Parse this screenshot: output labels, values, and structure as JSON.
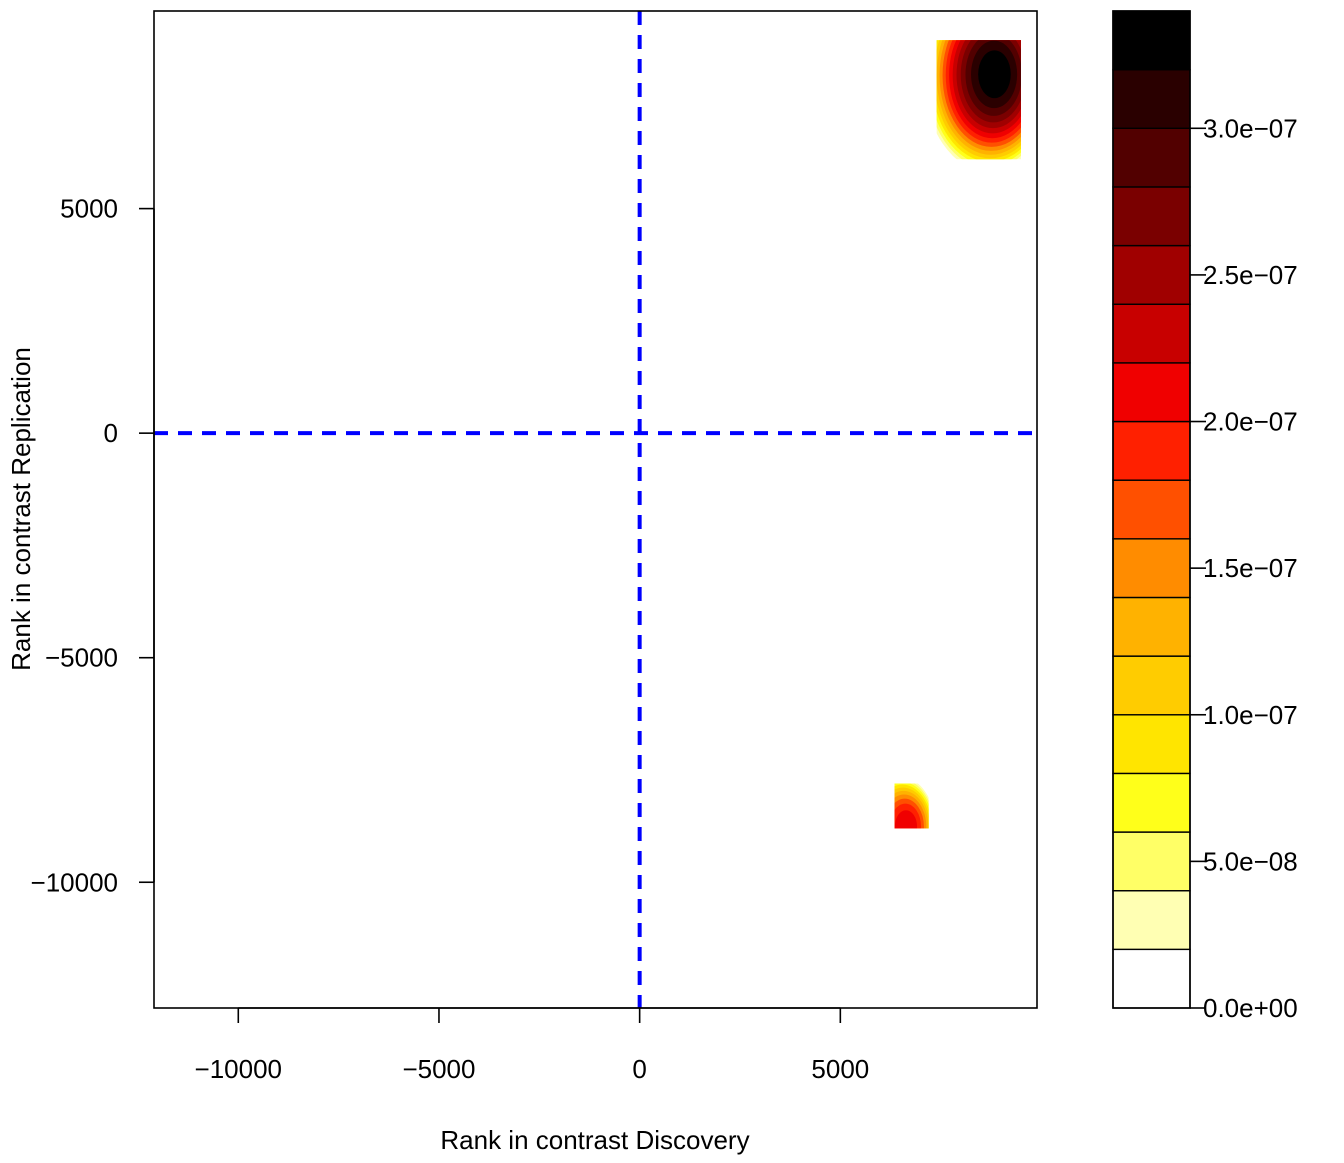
{
  "chart_data": {
    "type": "heatmap",
    "title": "",
    "xlabel": "Rank in contrast Discovery",
    "ylabel": "Rank in contrast Replication",
    "xlim": [
      -12100,
      9900
    ],
    "ylim": [
      -12800,
      9400
    ],
    "xticks": [
      {
        "value": -10000,
        "label": "−10000"
      },
      {
        "value": -5000,
        "label": "−5000"
      },
      {
        "value": 0,
        "label": "0"
      },
      {
        "value": 5000,
        "label": "5000"
      }
    ],
    "yticks": [
      {
        "value": -10000,
        "label": "−10000"
      },
      {
        "value": -5000,
        "label": "−5000"
      },
      {
        "value": 0,
        "label": "0"
      },
      {
        "value": 5000,
        "label": "5000"
      }
    ],
    "reference_lines": [
      {
        "orientation": "vertical",
        "value": 0,
        "color": "#0000ff",
        "style": "dashed"
      },
      {
        "orientation": "horizontal",
        "value": 0,
        "color": "#0000ff",
        "style": "dashed"
      }
    ],
    "grid": false,
    "density_blobs": [
      {
        "center_x": 8700,
        "center_y": 7950,
        "x_min": 7400,
        "x_max": 9500,
        "y_min": 6100,
        "y_max": 8750,
        "peak": 3.3e-07
      },
      {
        "center_x": 6500,
        "center_y": -8800,
        "x_min": 6350,
        "x_max": 7200,
        "y_min": -8800,
        "y_max": -7800,
        "peak": 2e-07
      }
    ],
    "colorbar": {
      "levels": [
        0,
        2e-08,
        4e-08,
        6e-08,
        8e-08,
        1e-07,
        1.2e-07,
        1.4e-07,
        1.6e-07,
        1.8e-07,
        2e-07,
        2.2e-07,
        2.4e-07,
        2.6e-07,
        2.8e-07,
        3e-07,
        3.2e-07,
        3.4e-07
      ],
      "colors": [
        "#ffffff",
        "#ffffb3",
        "#ffff66",
        "#ffff1a",
        "#ffe500",
        "#ffcc00",
        "#ffb200",
        "#ff8c00",
        "#ff5000",
        "#ff2000",
        "#f00000",
        "#c80000",
        "#a00000",
        "#7a0000",
        "#520000",
        "#2a0000",
        "#000000"
      ],
      "ticks": [
        {
          "value": 0,
          "label": "0.0e+00"
        },
        {
          "value": 5e-08,
          "label": "5.0e−08"
        },
        {
          "value": 1e-07,
          "label": "1.0e−07"
        },
        {
          "value": 1.5e-07,
          "label": "1.5e−07"
        },
        {
          "value": 2e-07,
          "label": "2.0e−07"
        },
        {
          "value": 2.5e-07,
          "label": "2.5e−07"
        },
        {
          "value": 3e-07,
          "label": "3.0e−07"
        }
      ]
    }
  }
}
